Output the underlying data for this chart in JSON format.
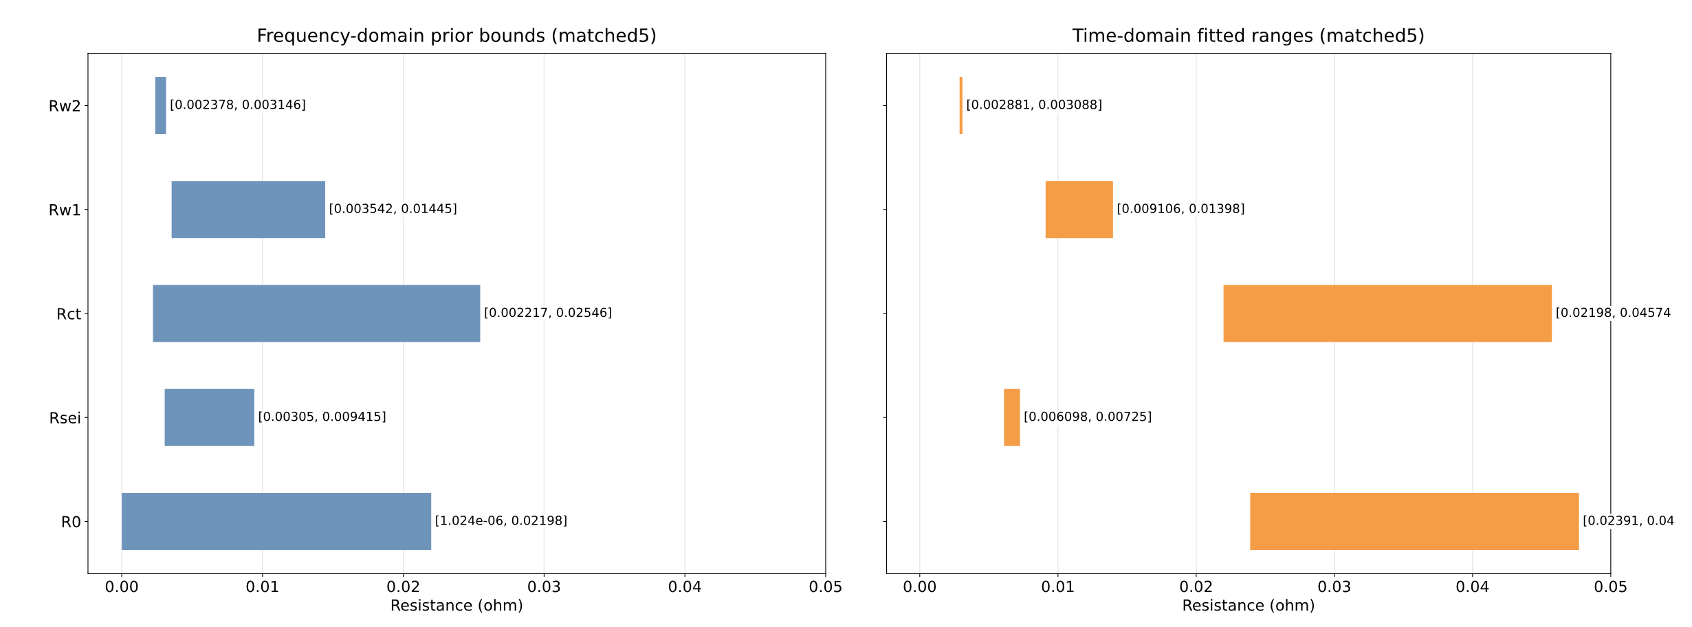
{
  "chart_data": [
    {
      "type": "bar",
      "orientation": "horizontal",
      "title": "Frequency-domain prior bounds (matched5)",
      "xlabel": "Resistance (ohm)",
      "categories": [
        "Rw2",
        "Rw1",
        "Rct",
        "Rsei",
        "R0"
      ],
      "base": [
        0.002378,
        0.003542,
        0.002217,
        0.00305,
        1.024e-06
      ],
      "values": [
        0.000768,
        0.010908,
        0.023243,
        0.006365,
        0.021978976
      ],
      "color": "#6f94bb",
      "value_labels": [
        "[0.002378, 0.003146]",
        "[0.003542, 0.01445]",
        "[0.002217, 0.02546]",
        "[0.00305, 0.009415]",
        "[1.024e-06, 0.02198]"
      ],
      "xlim": [
        -0.0024,
        0.05
      ],
      "xticks": [
        {
          "value": 0,
          "label": "0.00"
        },
        0.01,
        0.02,
        0.03,
        0.04,
        0.05
      ],
      "grid": "x"
    },
    {
      "type": "bar",
      "orientation": "horizontal",
      "title": "Time-domain fitted ranges (matched5)",
      "xlabel": "Resistance (ohm)",
      "categories": [
        null,
        null,
        null,
        null,
        null
      ],
      "base": [
        0.002881,
        0.009106,
        0.02198,
        0.006098,
        0.02391
      ],
      "values": [
        0.000207,
        0.004874,
        0.02376,
        0.001152,
        0.02379
      ],
      "color": "#f59c47",
      "value_labels": [
        "[0.002881, 0.003088]",
        "[0.009106, 0.01398]",
        "[0.02198, 0.04574",
        "[0.006098, 0.00725]",
        "[0.02391, 0.04"
      ],
      "xlim": [
        -0.0024,
        0.05
      ],
      "xticks": [
        {
          "value": 0,
          "label": "0.00"
        },
        0.01,
        0.02,
        0.03,
        0.04,
        0.05
      ],
      "grid": "x"
    }
  ]
}
